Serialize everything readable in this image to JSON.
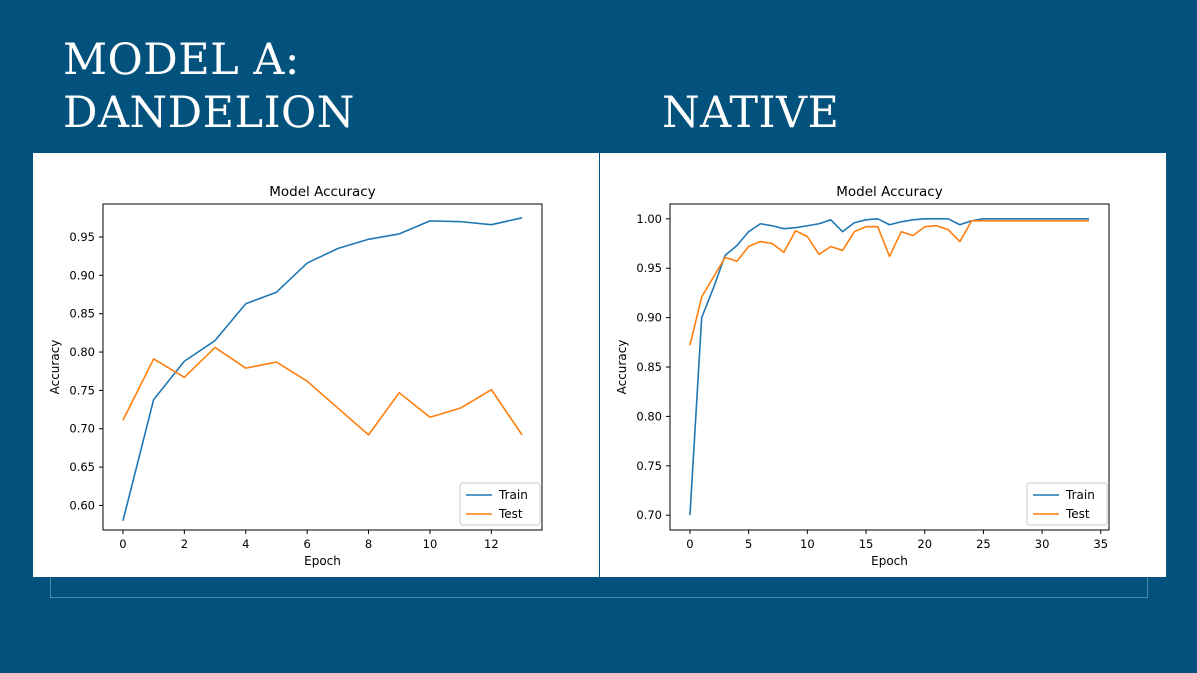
{
  "slide": {
    "heading_left_line1": "MODEL A:",
    "heading_left_line2": "DANDELION",
    "heading_right": "NATIVE"
  },
  "colors": {
    "background": "#03527d",
    "train": "#1f77b4",
    "test": "#ff7f0e"
  },
  "chart_data": [
    {
      "type": "line",
      "title": "Model Accuracy",
      "xlabel": "Epoch",
      "ylabel": "Accuracy",
      "xlim": [
        -0.65,
        13.65
      ],
      "ylim": [
        0.568,
        0.993
      ],
      "xticks": [
        0,
        2,
        4,
        6,
        8,
        10,
        12
      ],
      "yticks": [
        0.6,
        0.65,
        0.7,
        0.75,
        0.8,
        0.85,
        0.9,
        0.95
      ],
      "legend": "lower-right",
      "grid": false,
      "series": [
        {
          "name": "Train",
          "color": "#1f77b4",
          "x": [
            0,
            1,
            2,
            3,
            4,
            5,
            6,
            7,
            8,
            9,
            10,
            11,
            12,
            13
          ],
          "values": [
            0.58,
            0.738,
            0.788,
            0.815,
            0.863,
            0.878,
            0.916,
            0.935,
            0.947,
            0.954,
            0.971,
            0.97,
            0.966,
            0.975
          ]
        },
        {
          "name": "Test",
          "color": "#ff7f0e",
          "x": [
            0,
            1,
            2,
            3,
            4,
            5,
            6,
            7,
            8,
            9,
            10,
            11,
            12,
            13
          ],
          "values": [
            0.711,
            0.791,
            0.767,
            0.806,
            0.779,
            0.787,
            0.762,
            0.727,
            0.692,
            0.747,
            0.715,
            0.727,
            0.751,
            0.692
          ]
        }
      ]
    },
    {
      "type": "line",
      "title": "Model Accuracy",
      "xlabel": "Epoch",
      "ylabel": "Accuracy",
      "xlim": [
        -1.7,
        35.7
      ],
      "ylim": [
        0.685,
        1.015
      ],
      "xticks": [
        0,
        5,
        10,
        15,
        20,
        25,
        30,
        35
      ],
      "yticks": [
        0.7,
        0.75,
        0.8,
        0.85,
        0.9,
        0.95,
        1.0
      ],
      "legend": "lower-right",
      "grid": false,
      "series": [
        {
          "name": "Train",
          "color": "#1f77b4",
          "x": [
            0,
            1,
            2,
            3,
            4,
            5,
            6,
            7,
            8,
            9,
            10,
            11,
            12,
            13,
            14,
            15,
            16,
            17,
            18,
            19,
            20,
            21,
            22,
            23,
            24,
            25,
            26,
            27,
            28,
            29,
            30,
            31,
            32,
            33,
            34
          ],
          "values": [
            0.7,
            0.9,
            0.93,
            0.963,
            0.973,
            0.987,
            0.995,
            0.993,
            0.99,
            0.991,
            0.993,
            0.995,
            0.999,
            0.987,
            0.996,
            0.999,
            1.0,
            0.994,
            0.997,
            0.999,
            1.0,
            1.0,
            1.0,
            0.994,
            0.998,
            1.0,
            1.0,
            1.0,
            1.0,
            1.0,
            1.0,
            1.0,
            1.0,
            1.0,
            1.0
          ]
        },
        {
          "name": "Test",
          "color": "#ff7f0e",
          "x": [
            0,
            1,
            2,
            3,
            4,
            5,
            6,
            7,
            8,
            9,
            10,
            11,
            12,
            13,
            14,
            15,
            16,
            17,
            18,
            19,
            20,
            21,
            22,
            23,
            24,
            25,
            26,
            27,
            28,
            29,
            30,
            31,
            32,
            33,
            34
          ],
          "values": [
            0.872,
            0.921,
            0.941,
            0.961,
            0.957,
            0.972,
            0.977,
            0.975,
            0.966,
            0.988,
            0.982,
            0.964,
            0.972,
            0.968,
            0.987,
            0.992,
            0.992,
            0.962,
            0.987,
            0.983,
            0.992,
            0.993,
            0.989,
            0.977,
            0.998,
            0.998,
            0.998,
            0.998,
            0.998,
            0.998,
            0.998,
            0.998,
            0.998,
            0.998,
            0.998
          ]
        }
      ]
    }
  ]
}
